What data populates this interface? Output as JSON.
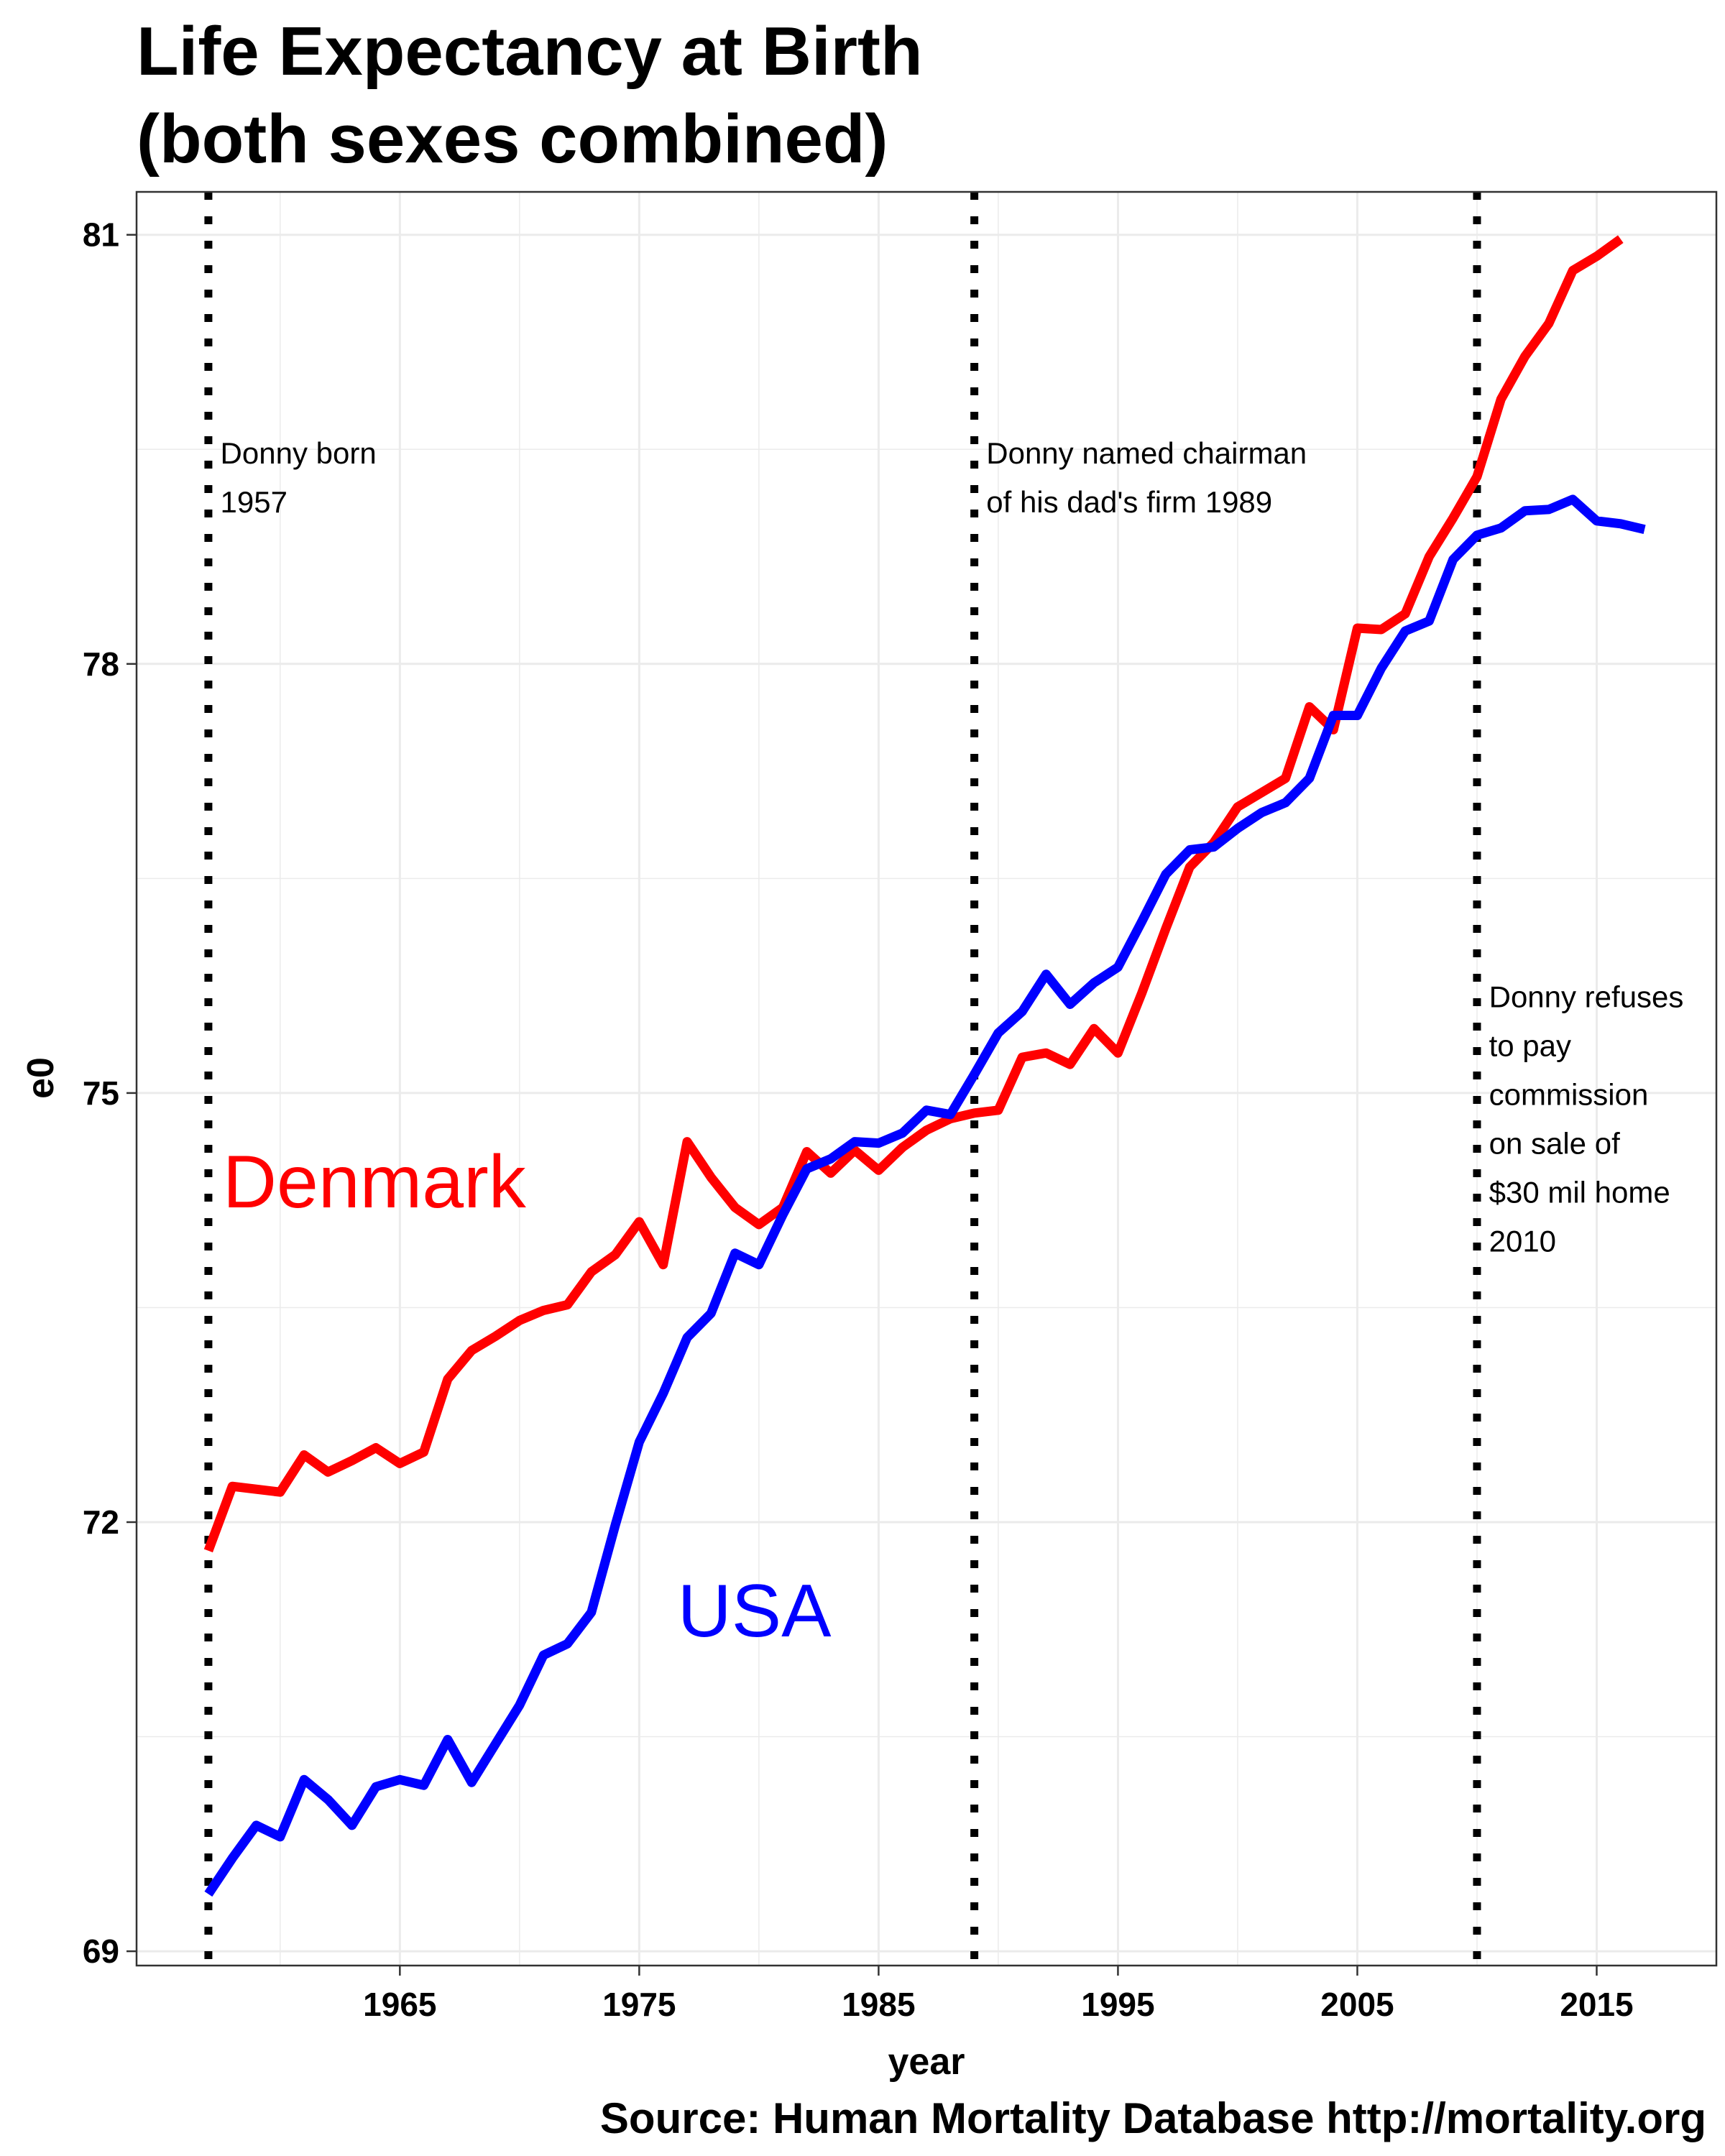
{
  "chart_data": {
    "type": "line",
    "title_lines": [
      "Life Expectancy at Birth",
      "(both sexes combined)"
    ],
    "xlabel": "year",
    "ylabel": "e0",
    "source": "Source: Human Mortality Database http://mortality.org",
    "xlim": [
      1954,
      2020
    ],
    "ylim": [
      68.9,
      81.3
    ],
    "x_ticks": [
      1965,
      1975,
      1985,
      1995,
      2005,
      2015
    ],
    "y_ticks": [
      69,
      72,
      75,
      78,
      81
    ],
    "grid": true,
    "series": [
      {
        "name": "Denmark",
        "color": "#ff0000",
        "label_year": 1957.6,
        "label_value": 74.2,
        "x": [
          1957,
          1958,
          1959,
          1960,
          1961,
          1962,
          1963,
          1964,
          1965,
          1966,
          1967,
          1968,
          1969,
          1970,
          1971,
          1972,
          1973,
          1974,
          1975,
          1976,
          1977,
          1978,
          1979,
          1980,
          1981,
          1982,
          1983,
          1984,
          1985,
          1986,
          1987,
          1988,
          1989,
          1990,
          1991,
          1992,
          1993,
          1994,
          1995,
          1996,
          1997,
          1998,
          1999,
          2000,
          2001,
          2002,
          2003,
          2004,
          2005,
          2006,
          2007,
          2008,
          2009,
          2010,
          2011,
          2012,
          2013,
          2014,
          2015,
          2016
        ],
        "values": [
          71.8,
          72.25,
          72.23,
          72.21,
          72.47,
          72.35,
          72.43,
          72.52,
          72.41,
          72.49,
          73.0,
          73.2,
          73.3,
          73.41,
          73.48,
          73.52,
          73.75,
          73.87,
          74.1,
          73.8,
          74.66,
          74.41,
          74.2,
          74.08,
          74.2,
          74.59,
          74.44,
          74.6,
          74.46,
          74.62,
          74.74,
          74.82,
          74.86,
          74.88,
          75.25,
          75.28,
          75.2,
          75.45,
          75.28,
          75.7,
          76.15,
          76.58,
          76.75,
          77.0,
          77.1,
          77.2,
          77.7,
          77.54,
          78.25,
          78.24,
          78.35,
          78.75,
          79.02,
          79.31,
          79.85,
          80.15,
          80.38,
          80.75,
          80.85,
          80.97
        ]
      },
      {
        "name": "USA",
        "color": "#0000ff",
        "label_year": 1976.6,
        "label_value": 71.2,
        "x": [
          1957,
          1958,
          1959,
          1960,
          1961,
          1962,
          1963,
          1964,
          1965,
          1966,
          1967,
          1968,
          1969,
          1970,
          1971,
          1972,
          1973,
          1974,
          1975,
          1976,
          1977,
          1978,
          1979,
          1980,
          1981,
          1982,
          1983,
          1984,
          1985,
          1986,
          1987,
          1988,
          1989,
          1990,
          1991,
          1992,
          1993,
          1994,
          1995,
          1996,
          1997,
          1998,
          1999,
          2000,
          2001,
          2002,
          2003,
          2004,
          2005,
          2006,
          2007,
          2008,
          2009,
          2010,
          2011,
          2012,
          2013,
          2014,
          2015,
          2016,
          2017
        ],
        "values": [
          69.4,
          69.65,
          69.88,
          69.8,
          70.2,
          70.06,
          69.88,
          70.15,
          70.2,
          70.16,
          70.48,
          70.18,
          70.45,
          70.72,
          71.07,
          71.15,
          71.37,
          71.98,
          72.56,
          72.9,
          73.29,
          73.46,
          73.88,
          73.8,
          74.15,
          74.47,
          74.54,
          74.66,
          74.65,
          74.72,
          74.88,
          74.85,
          75.13,
          75.42,
          75.57,
          75.83,
          75.62,
          75.77,
          75.88,
          76.2,
          76.53,
          76.7,
          76.72,
          76.85,
          76.96,
          77.03,
          77.2,
          77.64,
          77.64,
          77.97,
          78.23,
          78.3,
          78.73,
          78.9,
          78.95,
          79.07,
          79.08,
          79.15,
          79.0,
          78.98,
          78.94
        ]
      }
    ],
    "annotations": [
      {
        "year": 1957,
        "lines": [
          "Donny born",
          "1957"
        ],
        "text_year": 1957.5,
        "text_value": 79.4
      },
      {
        "year": 1989,
        "lines": [
          "Donny named chairman",
          "of his dad's firm 1989"
        ],
        "text_year": 1989.5,
        "text_value": 79.4
      },
      {
        "year": 2010,
        "lines": [
          "Donny refuses",
          "to pay",
          "commission",
          "on sale of",
          "$30 mil home",
          "2010"
        ],
        "text_year": 2010.5,
        "text_value": 75.6
      }
    ]
  }
}
